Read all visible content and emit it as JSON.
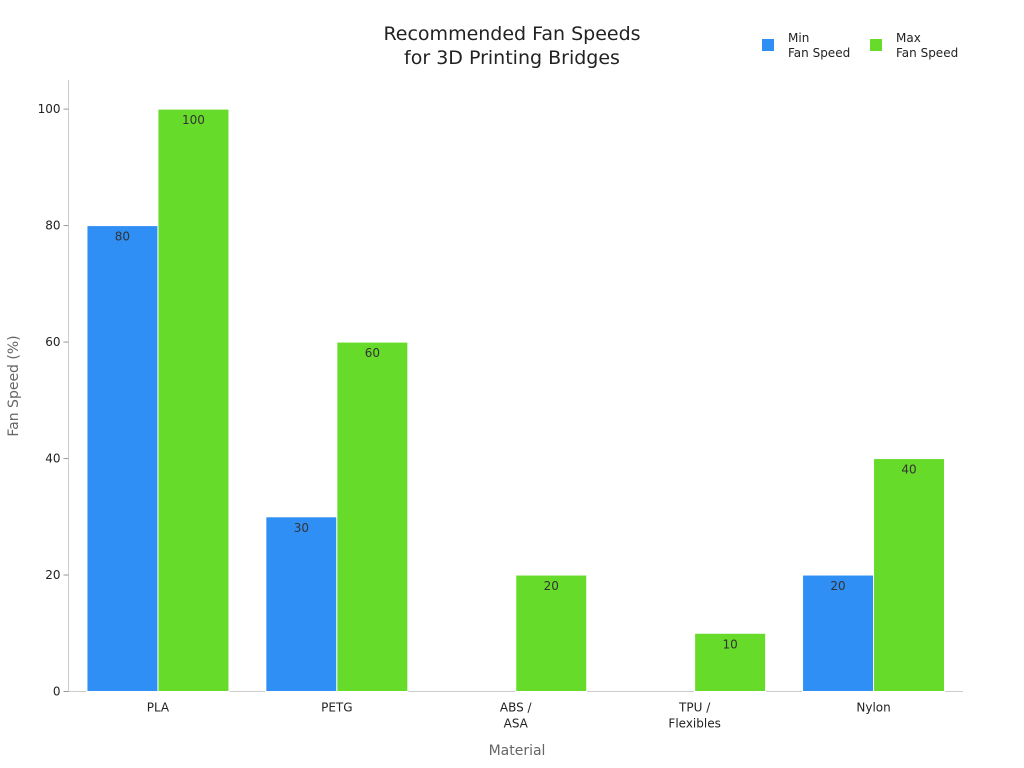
{
  "chart_data": {
    "type": "bar",
    "title": "Recommended Fan Speeds\nfor 3D Printing Bridges",
    "x_label": "Material",
    "y_label": "Fan Speed (%)",
    "categories": [
      "PLA",
      "PETG",
      "ABS /\nASA",
      "TPU /\nFlexibles",
      "Nylon"
    ],
    "series": [
      {
        "name": "Min\nFan Speed",
        "color": "#2f8ff5",
        "values": [
          80,
          30,
          0,
          0,
          20
        ]
      },
      {
        "name": "Max\nFan Speed",
        "color": "#66db2a",
        "values": [
          100,
          60,
          20,
          10,
          40
        ]
      }
    ],
    "ylim": [
      0,
      105
    ],
    "yticks": [
      0,
      20,
      40,
      60,
      80,
      100
    ],
    "legend": "top-right"
  }
}
